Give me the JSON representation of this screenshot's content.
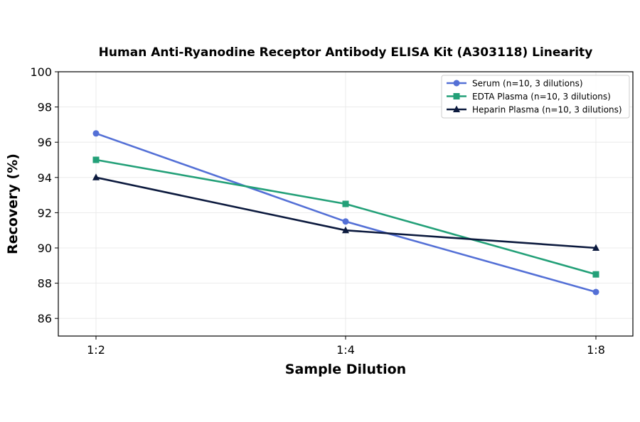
{
  "chart_data": {
    "type": "line",
    "title": "Human Anti-Ryanodine Receptor Antibody ELISA Kit (A303118) Linearity",
    "xlabel": "Sample Dilution",
    "ylabel": "Recovery (%)",
    "categories": [
      "1:2",
      "1:4",
      "1:8"
    ],
    "ylim": [
      85,
      100
    ],
    "yticks": [
      86,
      88,
      90,
      92,
      94,
      96,
      98,
      100
    ],
    "grid": true,
    "legend_position": "top-right",
    "series": [
      {
        "name": "Serum (n=10, 3 dilutions)",
        "values": [
          96.5,
          91.5,
          87.5
        ],
        "color": "#5470d6",
        "marker": "circle"
      },
      {
        "name": "EDTA Plasma (n=10, 3 dilutions)",
        "values": [
          95.0,
          92.5,
          88.5
        ],
        "color": "#23a078",
        "marker": "square"
      },
      {
        "name": "Heparin Plasma (n=10, 3 dilutions)",
        "values": [
          94.0,
          91.0,
          90.0
        ],
        "color": "#0c1a3e",
        "marker": "triangle"
      }
    ]
  }
}
